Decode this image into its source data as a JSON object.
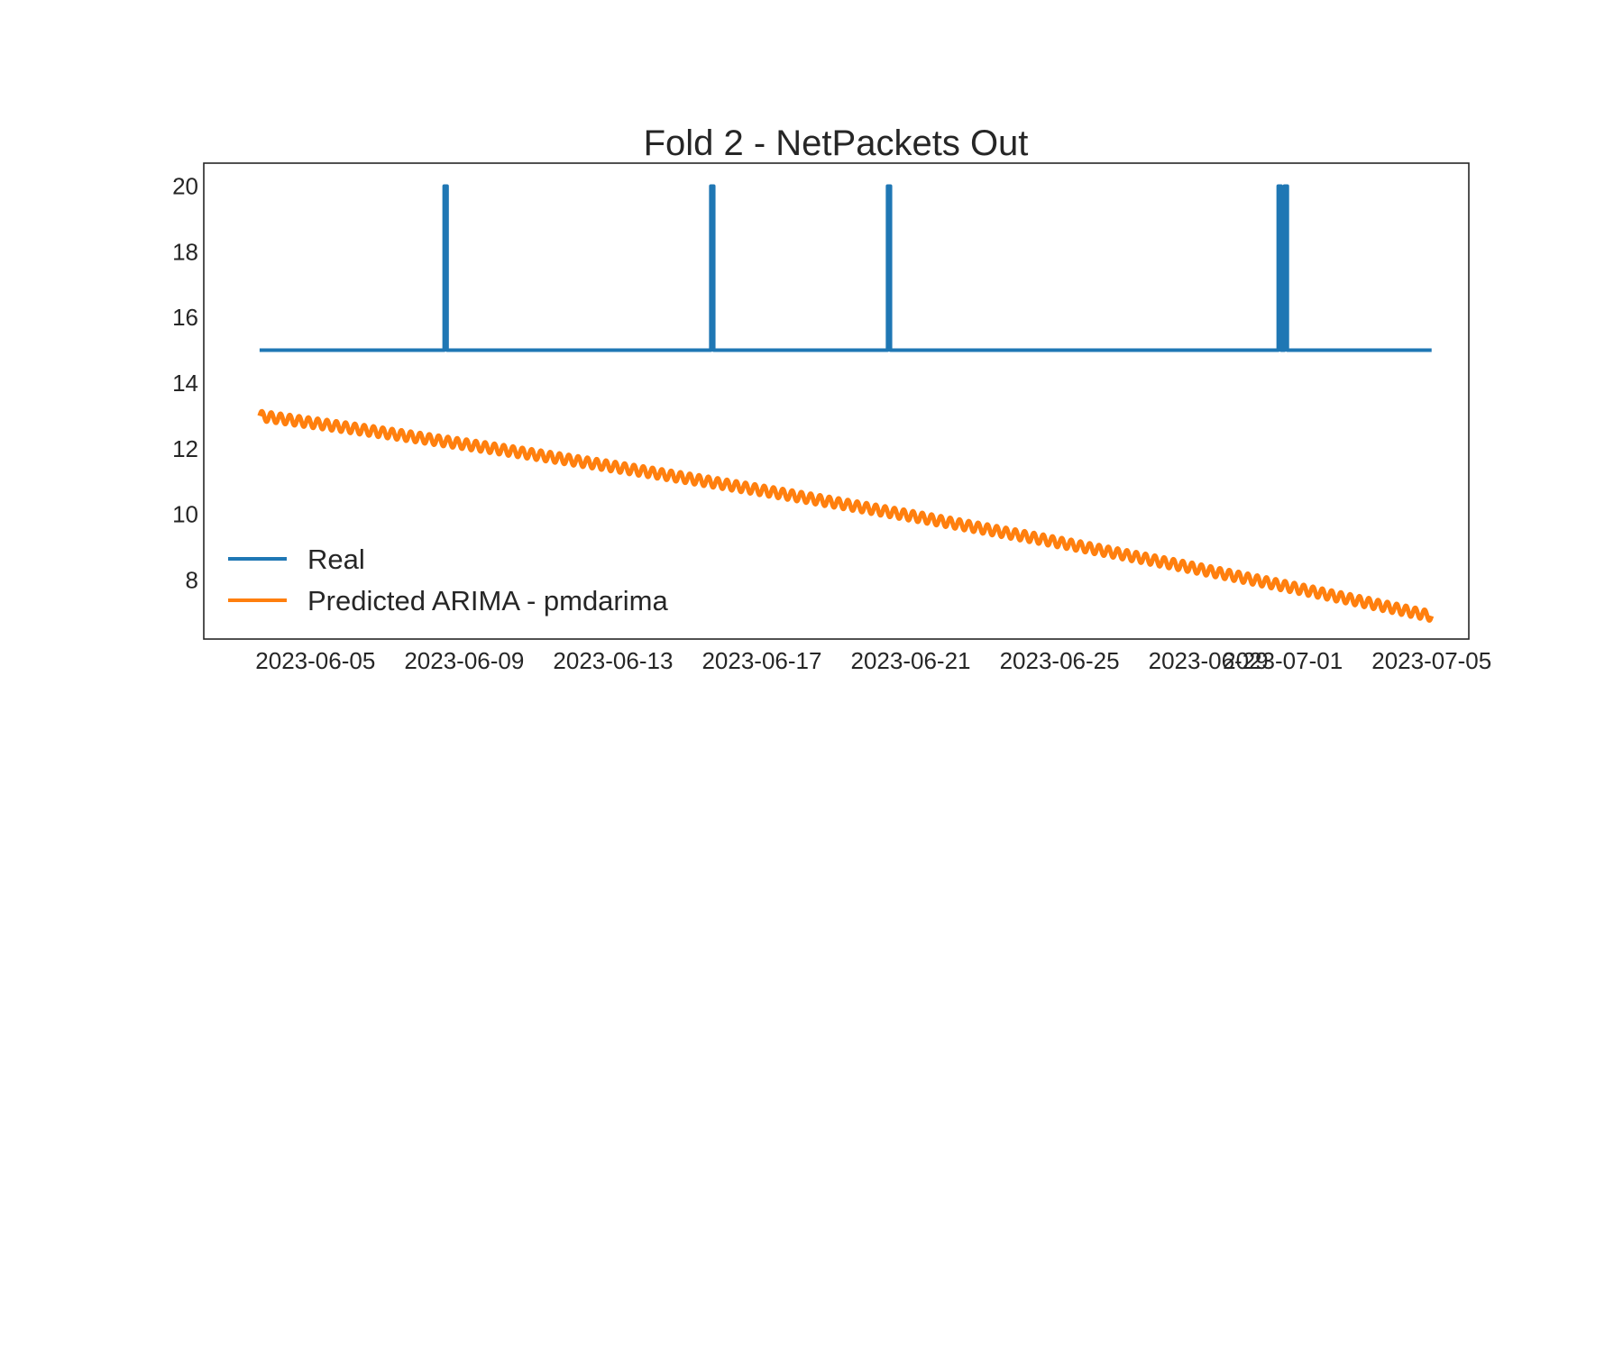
{
  "chart_data": {
    "type": "line",
    "title": "Fold 2 - NetPackets Out",
    "xlabel": "",
    "ylabel": "",
    "x_range": [
      "2023-06-02",
      "2023-07-06"
    ],
    "ylim": [
      6.2,
      20.7
    ],
    "y_ticks": [
      8,
      10,
      12,
      14,
      16,
      18,
      20
    ],
    "x_ticks": [
      "2023-06-05",
      "2023-06-09",
      "2023-06-13",
      "2023-06-17",
      "2023-06-21",
      "2023-06-25",
      "2023-06-29",
      "2023-07-01",
      "2023-07-05"
    ],
    "grid": false,
    "legend_position": "lower-left",
    "series": [
      {
        "name": "Real",
        "color": "#1f77b4",
        "baseline": 15,
        "start": "2023-06-03T12:00",
        "end": "2023-07-05T00:00",
        "spikes": [
          {
            "x": "2023-06-08T12:00",
            "y": 20
          },
          {
            "x": "2023-06-15T16:00",
            "y": 20
          },
          {
            "x": "2023-06-20T10:00",
            "y": 20
          },
          {
            "x": "2023-06-30T22:00",
            "y": 20
          },
          {
            "x": "2023-07-01T02:00",
            "y": 20
          }
        ]
      },
      {
        "name": "Predicted ARIMA - pmdarima",
        "color": "#ff7f0e",
        "start": "2023-06-03T12:00",
        "end": "2023-07-05T00:00",
        "start_value": 13.0,
        "mid_x": "2023-06-19T06:00",
        "mid_value": 10.3,
        "end_value": 6.9,
        "daily_oscillation": 0.15,
        "cycles_per_day": 4
      }
    ]
  }
}
